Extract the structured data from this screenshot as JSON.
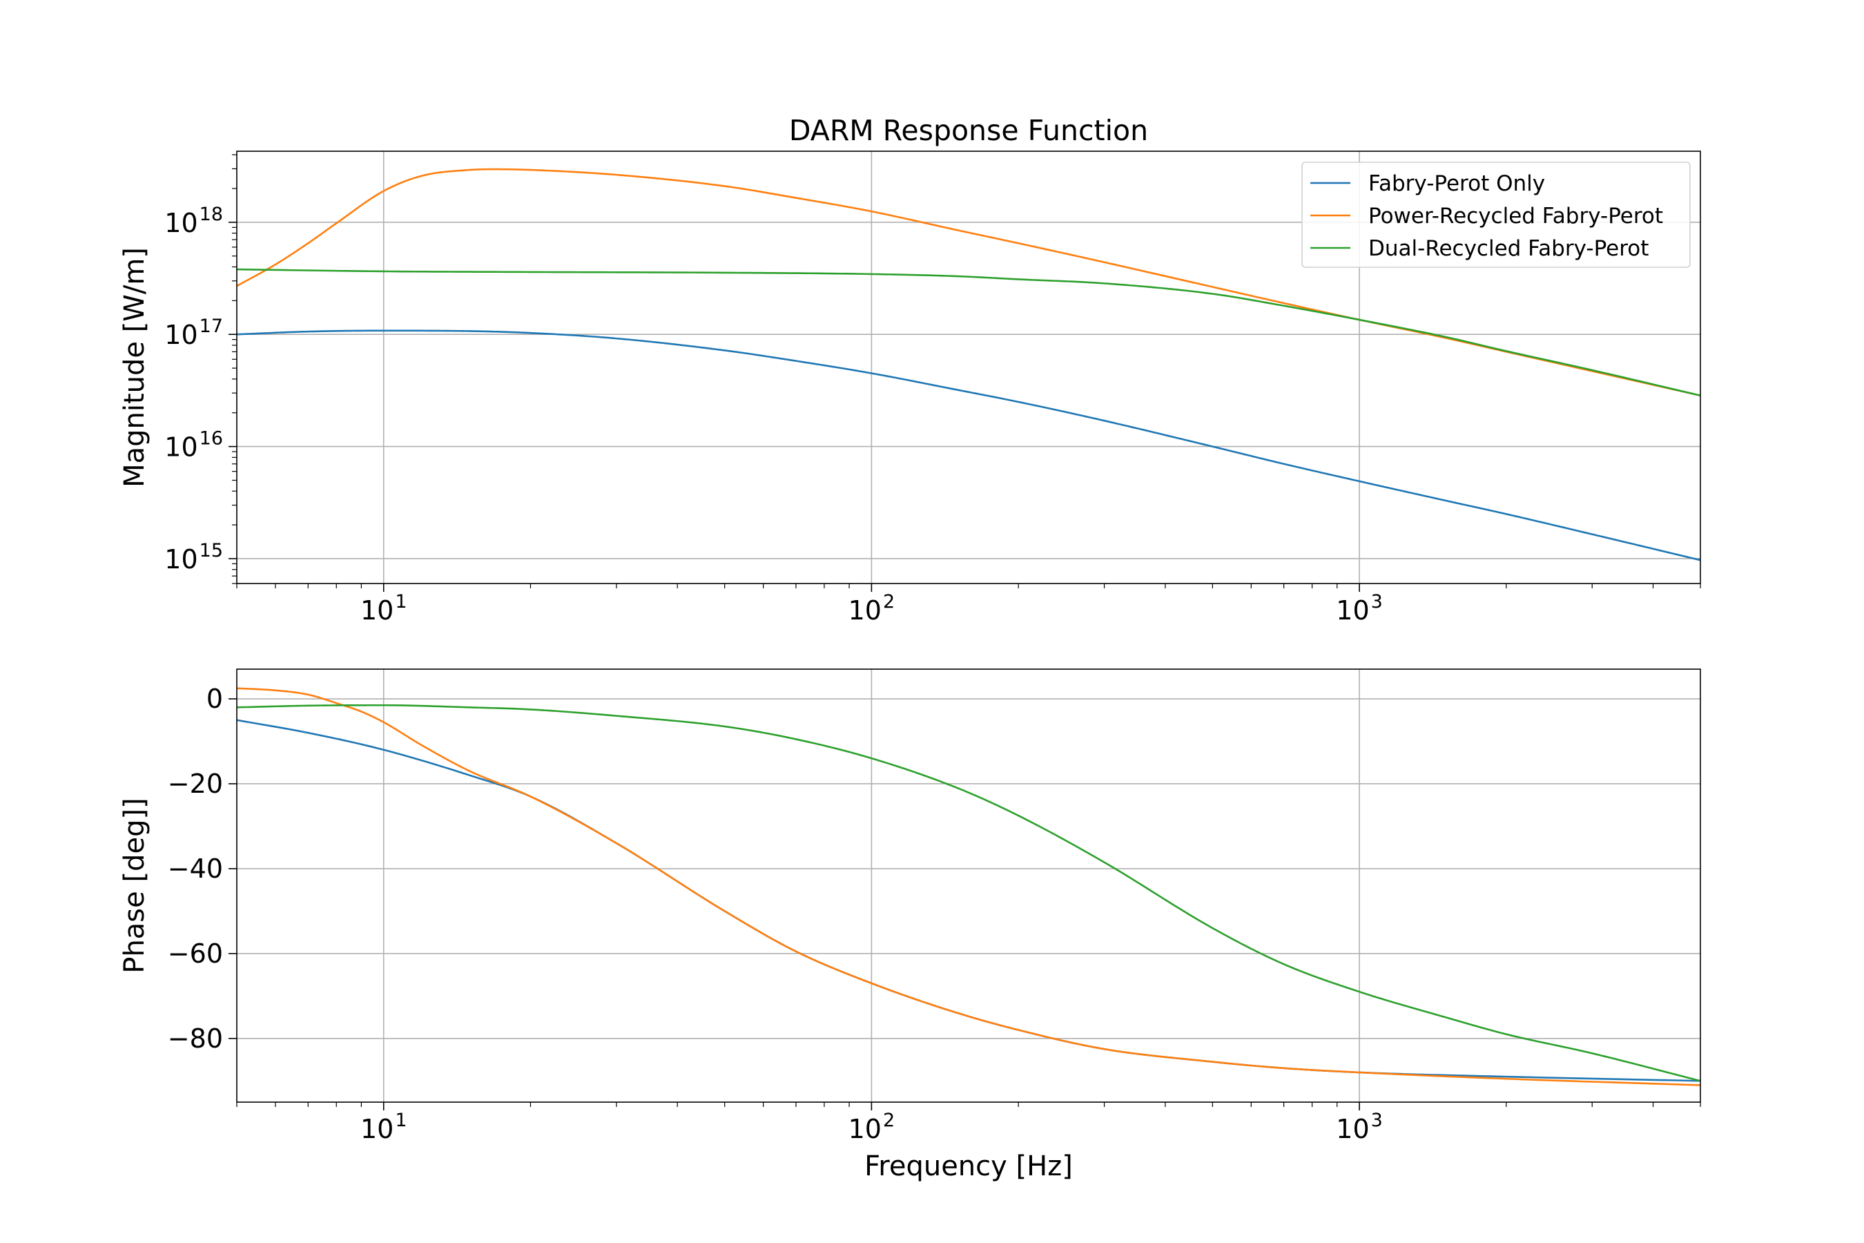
{
  "chart_data": [
    {
      "type": "line",
      "title": "DARM Response Function",
      "xlabel": "",
      "ylabel": "Magnitude [W/m]",
      "xscale": "log",
      "yscale": "log",
      "xlim": [
        5,
        5000
      ],
      "ylim": [
        600000000000000.0,
        4.3e+18
      ],
      "xticks": [
        {
          "base": "10",
          "exp": "1",
          "value": 10
        },
        {
          "base": "10",
          "exp": "2",
          "value": 100
        },
        {
          "base": "10",
          "exp": "3",
          "value": 1000
        }
      ],
      "yticks": [
        {
          "base": "10",
          "exp": "15",
          "value": 1000000000000000.0
        },
        {
          "base": "10",
          "exp": "16",
          "value": 1e+16
        },
        {
          "base": "10",
          "exp": "17",
          "value": 1e+17
        },
        {
          "base": "10",
          "exp": "18",
          "value": 1e+18
        }
      ],
      "grid": true,
      "legend": "top-right",
      "series": [
        {
          "name": "Fabry-Perot Only",
          "color": "#1f77b4",
          "x": [
            5,
            7,
            10,
            15,
            20,
            30,
            50,
            70,
            100,
            150,
            200,
            300,
            500,
            700,
            1000,
            1500,
            2000,
            3000,
            5000
          ],
          "y": [
            1e+17,
            1.06e+17,
            1.08e+17,
            1.07e+17,
            1.03e+17,
            9.2e+16,
            7.2e+16,
            5.8e+16,
            4.5e+16,
            3.2e+16,
            2.5e+16,
            1.7e+16,
            1e+16,
            7000000000000000.0,
            4900000000000000.0,
            3300000000000000.0,
            2500000000000000.0,
            1650000000000000.0,
            970000000000000.0
          ]
        },
        {
          "name": "Power-Recycled Fabry-Perot",
          "color": "#ff7f0e",
          "x": [
            5,
            6,
            7,
            8,
            10,
            12,
            15,
            17,
            20,
            30,
            50,
            70,
            100,
            150,
            200,
            300,
            500,
            700,
            1000,
            1500,
            2000,
            3000,
            5000
          ],
          "y": [
            2.7e+17,
            4.2e+17,
            6.5e+17,
            9.8e+17,
            1.9e+18,
            2.6e+18,
            2.93e+18,
            2.97e+18,
            2.93e+18,
            2.65e+18,
            2.1e+18,
            1.65e+18,
            1.25e+18,
            8.5e+17,
            6.5e+17,
            4.4e+17,
            2.65e+17,
            1.9e+17,
            1.35e+17,
            9.3e+16,
            7e+16,
            4.7e+16,
            2.85e+16
          ]
        },
        {
          "name": "Dual-Recycled Fabry-Perot",
          "color": "#2ca02c",
          "x": [
            5,
            10,
            20,
            50,
            100,
            150,
            200,
            300,
            500,
            700,
            1000,
            1500,
            2000,
            3000,
            5000
          ],
          "y": [
            3.8e+17,
            3.65e+17,
            3.6e+17,
            3.55e+17,
            3.45e+17,
            3.3e+17,
            3.1e+17,
            2.85e+17,
            2.3e+17,
            1.8e+17,
            1.35e+17,
            9.5e+16,
            7.1e+16,
            4.8e+16,
            2.85e+16
          ]
        }
      ]
    },
    {
      "type": "line",
      "title": "",
      "xlabel": "Frequency [Hz]",
      "ylabel": "Phase [deg]]",
      "xscale": "log",
      "yscale": "linear",
      "xlim": [
        5,
        5000
      ],
      "ylim": [
        -95,
        7
      ],
      "xticks": [
        {
          "base": "10",
          "exp": "1",
          "value": 10
        },
        {
          "base": "10",
          "exp": "2",
          "value": 100
        },
        {
          "base": "10",
          "exp": "3",
          "value": 1000
        }
      ],
      "yticks": [
        {
          "label": "0",
          "value": 0
        },
        {
          "label": "−20",
          "value": -20
        },
        {
          "label": "−40",
          "value": -40
        },
        {
          "label": "−60",
          "value": -60
        },
        {
          "label": "−80",
          "value": -80
        }
      ],
      "grid": true,
      "legend": "none",
      "series": [
        {
          "name": "Fabry-Perot Only",
          "color": "#1f77b4",
          "x": [
            5,
            7,
            10,
            15,
            20,
            30,
            50,
            70,
            100,
            150,
            200,
            300,
            500,
            700,
            1000,
            2000,
            5000
          ],
          "y": [
            -5,
            -8,
            -12,
            -18,
            -23,
            -34,
            -50,
            -59.5,
            -67,
            -74,
            -78,
            -82.5,
            -85.5,
            -87,
            -88,
            -89,
            -90
          ]
        },
        {
          "name": "Power-Recycled Fabry-Perot",
          "color": "#ff7f0e",
          "x": [
            5,
            6,
            7,
            8,
            9,
            10,
            12,
            15,
            20,
            30,
            50,
            70,
            100,
            150,
            200,
            300,
            500,
            700,
            1000,
            2000,
            5000
          ],
          "y": [
            2.5,
            2,
            1,
            -1,
            -3,
            -5.5,
            -11,
            -17,
            -23,
            -34,
            -50,
            -59.5,
            -67,
            -74,
            -78,
            -82.5,
            -85.5,
            -87,
            -88,
            -89.5,
            -91
          ]
        },
        {
          "name": "Dual-Recycled Fabry-Perot",
          "color": "#2ca02c",
          "x": [
            5,
            7,
            10,
            15,
            20,
            30,
            50,
            70,
            100,
            150,
            200,
            300,
            500,
            700,
            1000,
            1500,
            2000,
            3000,
            5000
          ],
          "y": [
            -2,
            -1.6,
            -1.5,
            -2,
            -2.5,
            -4,
            -6.5,
            -9.5,
            -14,
            -21,
            -27.5,
            -38.5,
            -54,
            -62.5,
            -69,
            -75,
            -79,
            -83.5,
            -90
          ]
        }
      ]
    }
  ]
}
